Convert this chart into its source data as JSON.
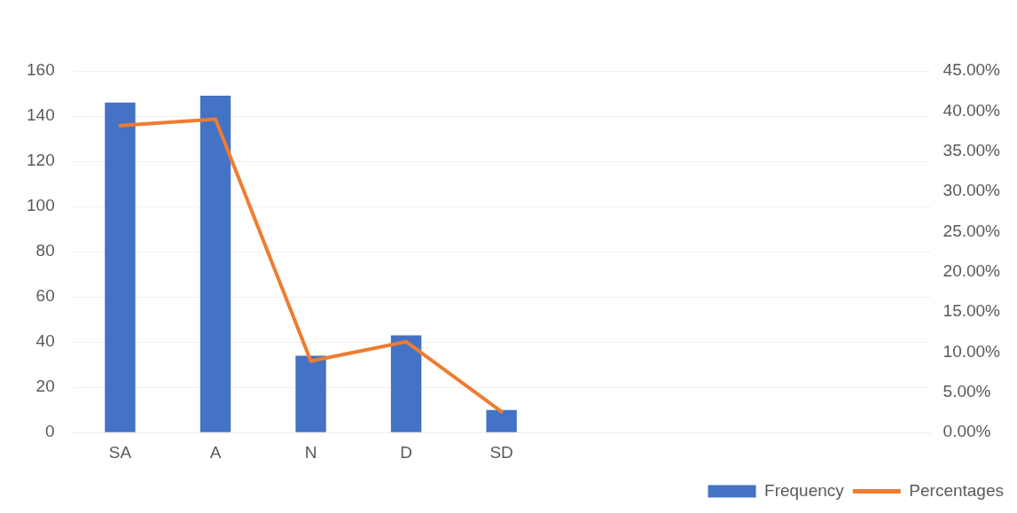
{
  "chart_data": {
    "type": "bar",
    "categories": [
      "SA",
      "A",
      "N",
      "D",
      "SD",
      null,
      null,
      null,
      null
    ],
    "series": [
      {
        "name": "Frequency",
        "color": "#4472c4",
        "values": [
          146,
          149,
          34,
          43,
          10,
          null,
          null,
          null,
          null
        ]
      },
      {
        "name": "Percentages",
        "type": "line",
        "axis": "y2",
        "color": "#ed7d31",
        "marker": "none",
        "line_style": "solid",
        "values": [
          38.2,
          39.0,
          8.9,
          11.3,
          2.6,
          null,
          null,
          null,
          null
        ]
      }
    ],
    "ylim": [
      0,
      160
    ],
    "yticks": [
      0,
      20,
      40,
      60,
      80,
      100,
      120,
      140,
      160
    ],
    "y2lim": [
      0,
      45
    ],
    "y2ticks": [
      {
        "value": 0,
        "label": "0.00%"
      },
      {
        "value": 5,
        "label": "5.00%"
      },
      {
        "value": 10,
        "label": "10.00%"
      },
      {
        "value": 15,
        "label": "15.00%"
      },
      {
        "value": 20,
        "label": "20.00%"
      },
      {
        "value": 25,
        "label": "25.00%"
      },
      {
        "value": 30,
        "label": "30.00%"
      },
      {
        "value": 35,
        "label": "35.00%"
      },
      {
        "value": 40,
        "label": "40.00%"
      },
      {
        "value": 45,
        "label": "45.00%"
      }
    ],
    "grid": "y",
    "legend": "bottom right"
  }
}
